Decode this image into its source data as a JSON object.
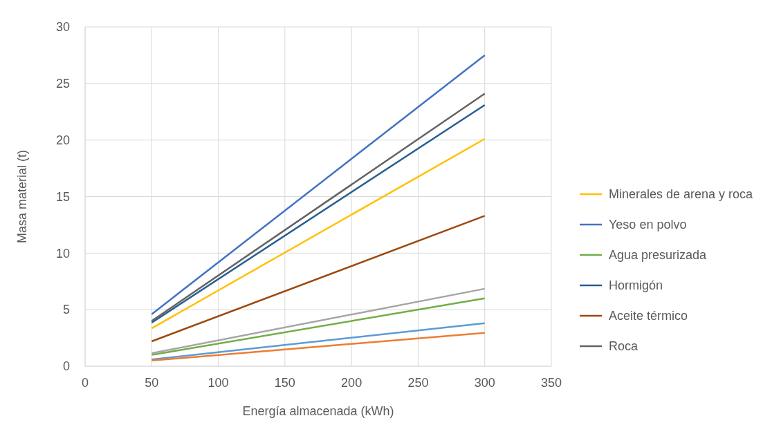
{
  "chart_data": {
    "type": "line",
    "xlabel": "Energía almacenada (kWh)",
    "ylabel": "Masa material (t)",
    "xlim": [
      0,
      350
    ],
    "xticks": [
      0,
      50,
      100,
      150,
      200,
      250,
      300,
      350
    ],
    "ylim": [
      0,
      30
    ],
    "yticks": [
      0,
      5,
      10,
      15,
      20,
      25,
      30
    ],
    "grid": true,
    "legend": "right",
    "marker": "none",
    "x": [
      50,
      300
    ],
    "series": [
      {
        "color": "#5b9bd5",
        "values": [
          0.6,
          3.8
        ]
      },
      {
        "color": "#ed7d31",
        "values": [
          0.5,
          2.95
        ]
      },
      {
        "color": "#a5a5a5",
        "values": [
          1.15,
          6.85
        ]
      },
      {
        "name": "Minerales de arena y roca",
        "color": "#ffc000",
        "values": [
          3.35,
          20.1
        ]
      },
      {
        "name": "Yeso en polvo",
        "color": "#4472c4",
        "values": [
          4.6,
          27.5
        ]
      },
      {
        "name": "Agua presurizada",
        "color": "#70ad47",
        "values": [
          1.0,
          6.0
        ]
      },
      {
        "name": "Hormigón",
        "color": "#255e91",
        "values": [
          3.85,
          23.1
        ]
      },
      {
        "name": "Aceite térmico",
        "color": "#9e480e",
        "values": [
          2.2,
          13.3
        ]
      },
      {
        "name": "Roca",
        "color": "#636363",
        "values": [
          4.0,
          24.1
        ]
      }
    ]
  }
}
